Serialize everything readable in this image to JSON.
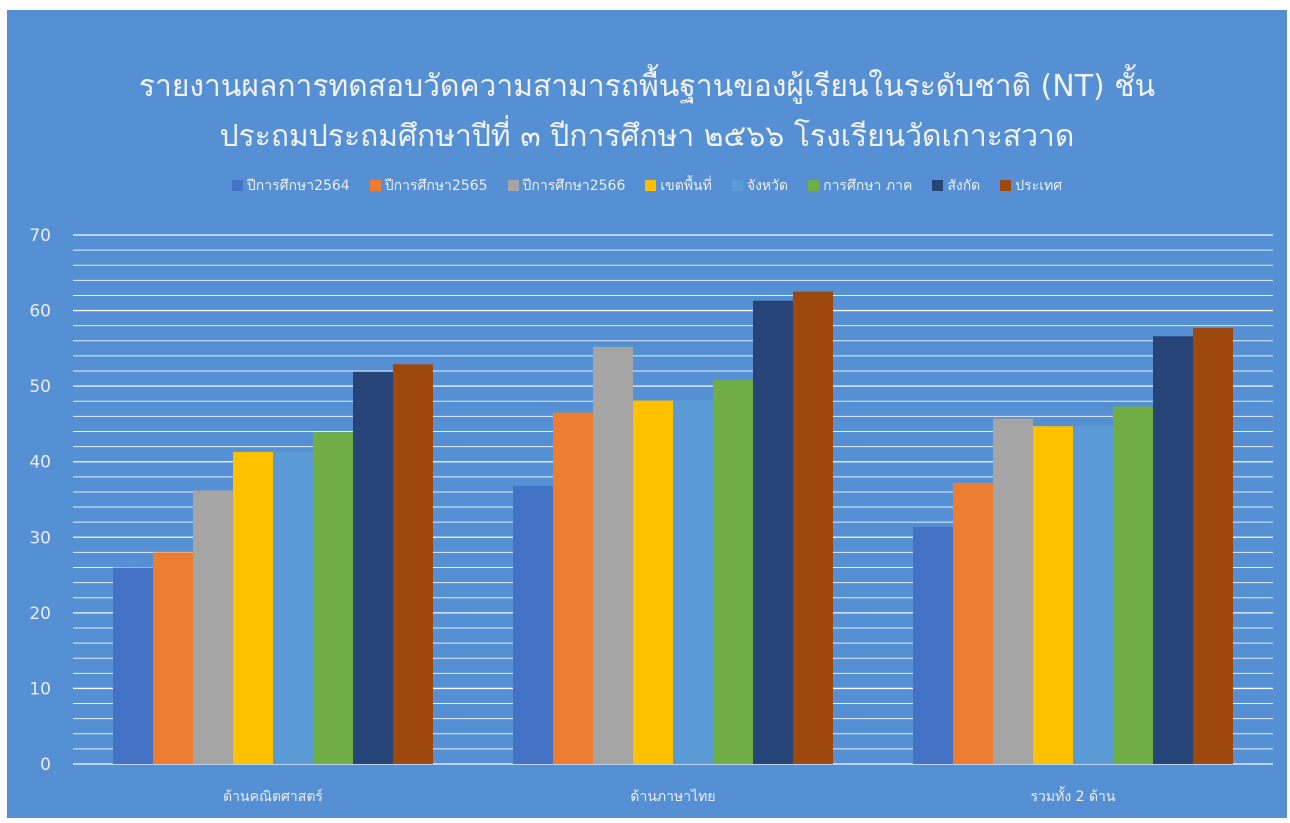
{
  "chart_data": {
    "type": "bar",
    "title_lines": [
      "รายงานผลการทดสอบวัดความสามารถพื้นฐานของผู้เรียนในระดับชาติ (NT) ชั้น",
      "ประถมประถมศึกษาปีที่ ๓ ปีการศึกษา ๒๕๖๖ โรงเรียนวัดเกาะสวาด"
    ],
    "categories": [
      "ด้านคณิตศาสตร์",
      "ด้านภาษาไทย",
      "รวมทั้ง 2 ด้าน"
    ],
    "series": [
      {
        "name": "ปีการศึกษา2564",
        "color": "#4472c4",
        "values": [
          26.0,
          36.8,
          31.4
        ]
      },
      {
        "name": "ปีการศึกษา2565",
        "color": "#ed7d31",
        "values": [
          28.0,
          46.5,
          37.2
        ]
      },
      {
        "name": "ปีการศึกษา2566",
        "color": "#a5a5a5",
        "values": [
          36.2,
          55.2,
          45.7
        ]
      },
      {
        "name": "เขตพื้นที่",
        "color": "#ffc000",
        "values": [
          41.3,
          48.1,
          44.7
        ]
      },
      {
        "name": "จังหวัด",
        "color": "#5b9bd5",
        "values": [
          41.3,
          48.1,
          44.7
        ]
      },
      {
        "name": "การศึกษา ภาค",
        "color": "#70ad47",
        "values": [
          43.9,
          50.8,
          47.3
        ]
      },
      {
        "name": "สังกัด",
        "color": "#264478",
        "values": [
          51.9,
          61.3,
          56.6
        ]
      },
      {
        "name": "ประเทศ",
        "color": "#9e480e",
        "values": [
          52.9,
          62.5,
          57.7
        ]
      }
    ],
    "ylim": [
      0,
      70
    ],
    "y_ticks": [
      0,
      10,
      20,
      30,
      40,
      50,
      60,
      70
    ],
    "minor_grid_step": 2,
    "grid": true,
    "legend_position": "top",
    "background_color": "#5590d4",
    "grid_color": "#ffffff"
  }
}
